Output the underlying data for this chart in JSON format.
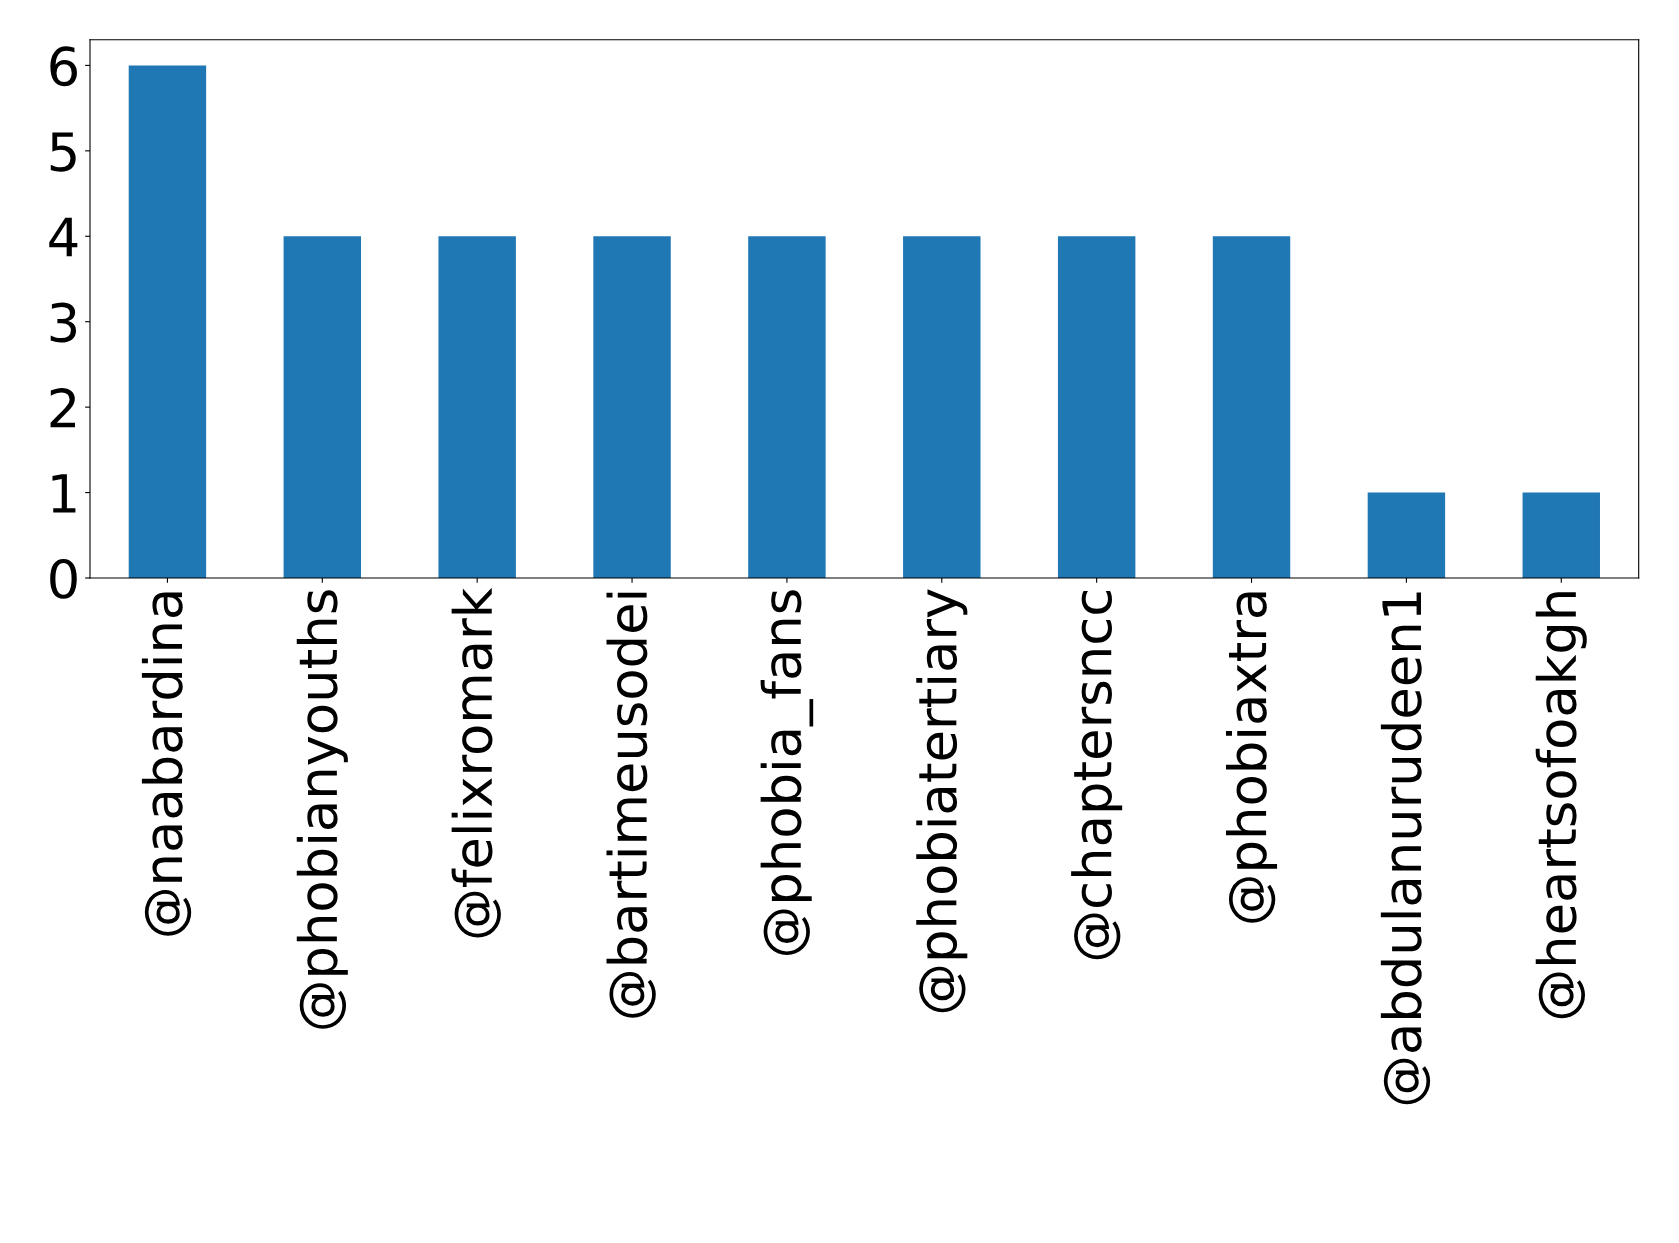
{
  "chart_data": {
    "type": "bar",
    "categories": [
      "@naabardina",
      "@phobianyouths",
      "@felixromark",
      "@bartimeusodei",
      "@phobia_fans",
      "@phobiatertiary",
      "@chaptersncc",
      "@phobiaxtra",
      "@abdulanurudeen1",
      "@heartsofoakgh"
    ],
    "values": [
      6,
      4,
      4,
      4,
      4,
      4,
      4,
      4,
      1,
      1
    ],
    "color": "#1f77b4",
    "ylim": [
      0,
      6.3
    ],
    "yticks": [
      0,
      1,
      2,
      3,
      4,
      5,
      6
    ],
    "grid": false,
    "legend": false
  }
}
